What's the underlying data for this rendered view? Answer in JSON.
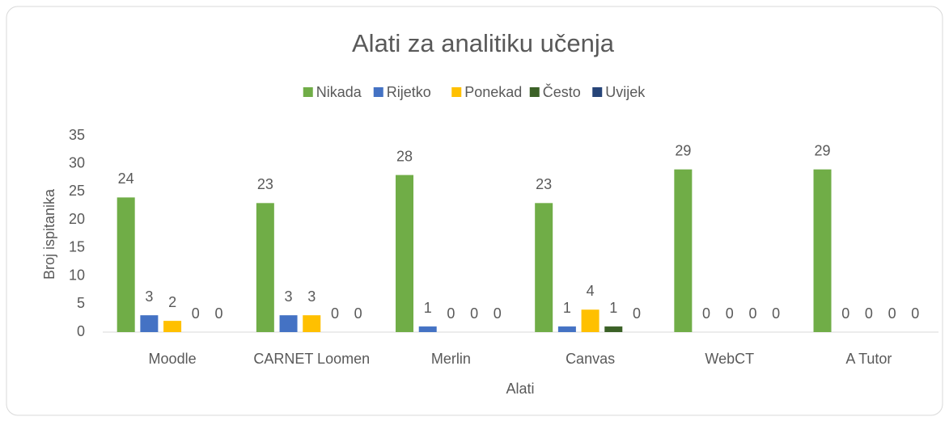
{
  "chart_data": {
    "type": "bar",
    "title": "Alati za analitiku učenja",
    "x_label": "Alati",
    "y_label": "Broj ispitanika",
    "categories": [
      "Moodle",
      "CARNET Loomen",
      "Merlin",
      "Canvas",
      "WebCT",
      "A Tutor"
    ],
    "series": [
      {
        "name": "Nikada",
        "color": "#70ad47",
        "values": [
          24,
          23,
          28,
          23,
          29,
          29
        ]
      },
      {
        "name": "Rijetko",
        "color": "#4472c4",
        "values": [
          3,
          3,
          1,
          1,
          0,
          0
        ]
      },
      {
        "name": "Ponekad",
        "color": "#ffc000",
        "values": [
          2,
          3,
          0,
          4,
          0,
          0
        ]
      },
      {
        "name": "Često",
        "color": "#3b6126",
        "values": [
          0,
          0,
          0,
          1,
          0,
          0
        ]
      },
      {
        "name": "Uvijek",
        "color": "#264478",
        "values": [
          0,
          0,
          0,
          0,
          0,
          0
        ]
      }
    ],
    "ylim": [
      0,
      35
    ],
    "yticks": [
      0,
      5,
      10,
      15,
      20,
      25,
      30,
      35
    ],
    "legend": "top",
    "grid": false
  }
}
